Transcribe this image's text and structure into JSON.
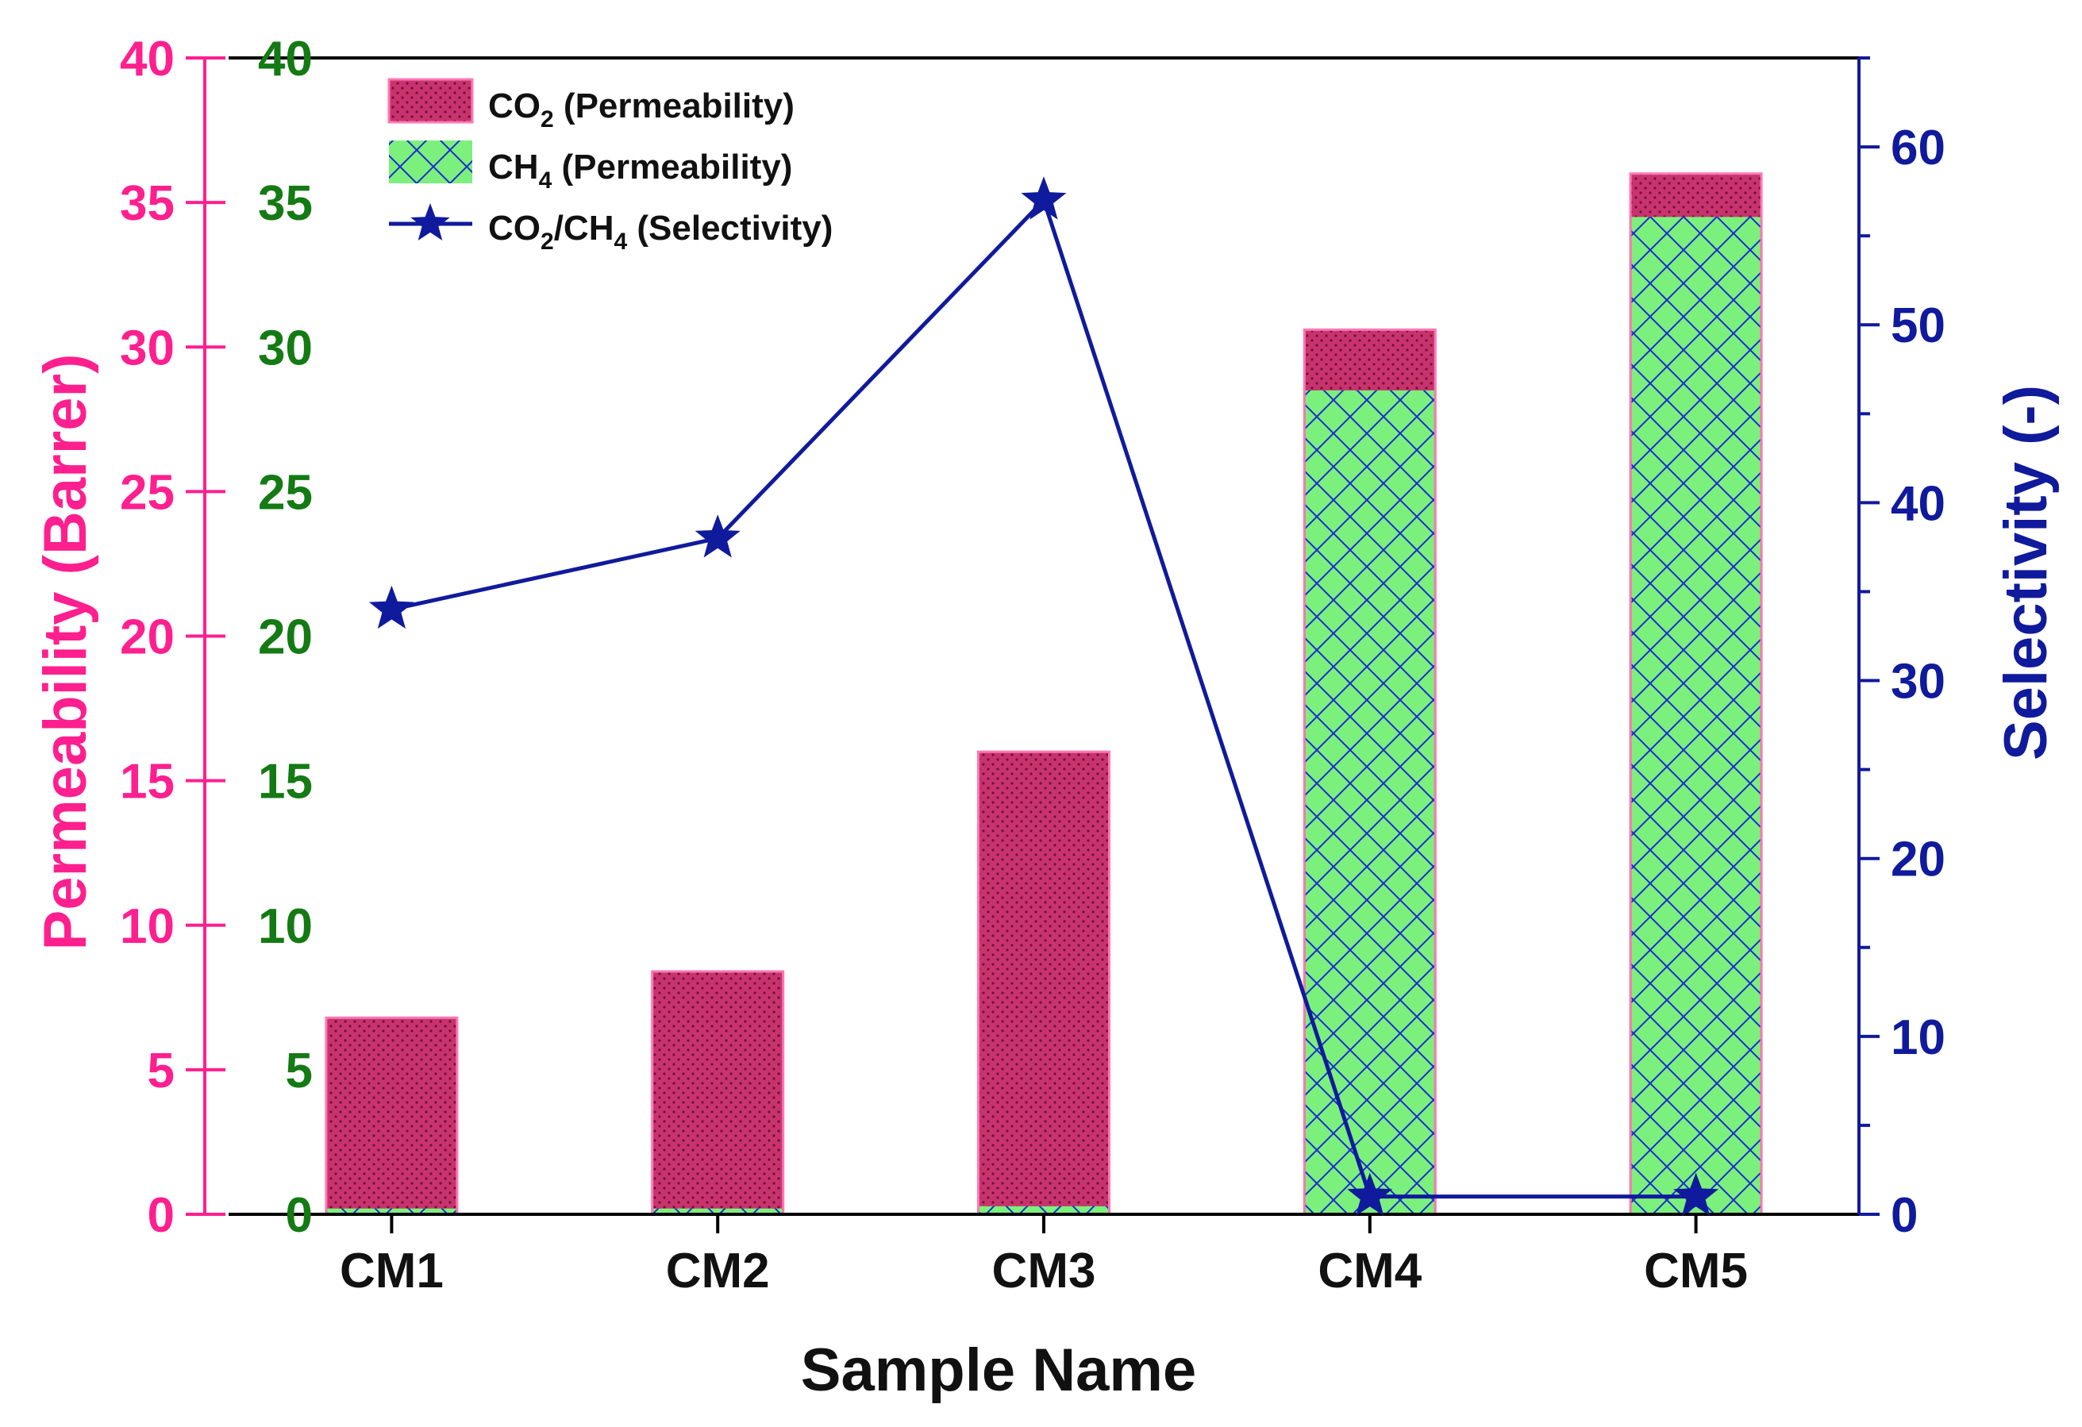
{
  "chart_data": {
    "type": "bar",
    "categories": [
      "CM1",
      "CM2",
      "CM3",
      "CM4",
      "CM5"
    ],
    "xlabel": "Sample Name",
    "ylabel_left": "Permeability (Barrer)",
    "ylabel_right": "Selectivity (-)",
    "ylim_left": [
      0,
      40
    ],
    "ylim_right": [
      0,
      65
    ],
    "yticks_left": [
      "0",
      "5",
      "10",
      "15",
      "20",
      "25",
      "30",
      "35",
      "40"
    ],
    "yticks_right": [
      "0",
      "10",
      "20",
      "30",
      "40",
      "50",
      "60"
    ],
    "series": [
      {
        "name_main": "CO",
        "name_sub": "2",
        "name_tail": " (Permeability)",
        "kind": "bar",
        "axis": "left",
        "fill": "#c8336e",
        "edge": "#ff77b4",
        "values": [
          6.8,
          8.4,
          16.0,
          30.6,
          36.0
        ]
      },
      {
        "name_main": "CH",
        "name_sub": "4",
        "name_tail": " (Permeability)",
        "kind": "bar",
        "axis": "left",
        "fill": "#7cf07c",
        "hatch": "#1a2bd0",
        "values": [
          0.2,
          0.2,
          0.28,
          28.5,
          34.5
        ]
      },
      {
        "name_main": "CO",
        "name_sub": "2",
        "name_mid": "/CH",
        "name_sub2": "4",
        "name_tail": " (Selectivity)",
        "kind": "line",
        "axis": "right",
        "color": "#101a9c",
        "values": [
          34,
          38,
          57,
          1,
          1
        ]
      }
    ],
    "colors": {
      "axis_left": "#ff1f8e",
      "axis_left_inner": "#147a14",
      "axis_right": "#101a9c",
      "frame": "#000000"
    },
    "legend_position": "top-left"
  }
}
